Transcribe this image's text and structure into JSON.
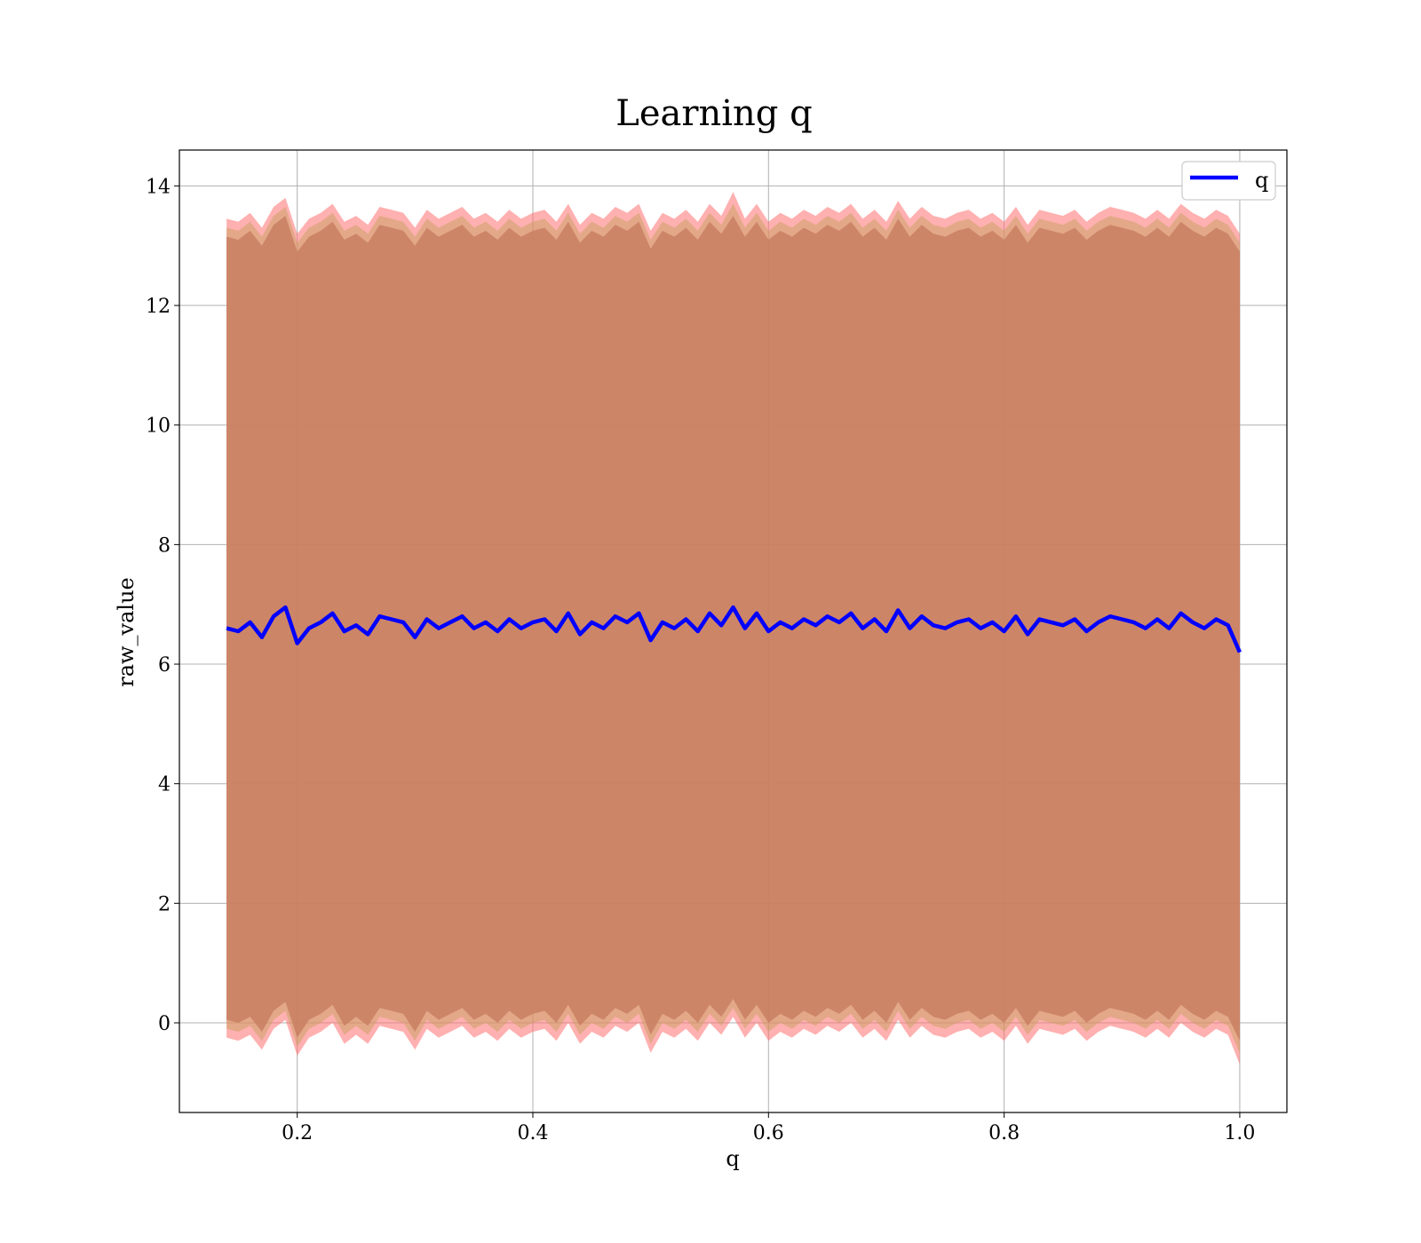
{
  "chart_data": {
    "type": "line",
    "title": "Learning q",
    "xlabel": "q",
    "ylabel": "raw_value",
    "xlim": [
      0.1,
      1.04
    ],
    "ylim": [
      -1.5,
      14.6
    ],
    "x_ticks": [
      0.2,
      0.4,
      0.6,
      0.8,
      1.0
    ],
    "x_tick_labels": [
      "0.2",
      "0.4",
      "0.6",
      "0.8",
      "1.0"
    ],
    "y_ticks": [
      0,
      2,
      4,
      6,
      8,
      10,
      12,
      14
    ],
    "y_tick_labels": [
      "0",
      "2",
      "4",
      "6",
      "8",
      "10",
      "12",
      "14"
    ],
    "grid": true,
    "legend_position": "upper right",
    "series": [
      {
        "name": "q",
        "color": "#0000ff",
        "x": [
          0.14,
          0.15,
          0.16,
          0.17,
          0.18,
          0.19,
          0.2,
          0.21,
          0.22,
          0.23,
          0.24,
          0.25,
          0.26,
          0.27,
          0.28,
          0.29,
          0.3,
          0.31,
          0.32,
          0.33,
          0.34,
          0.35,
          0.36,
          0.37,
          0.38,
          0.39,
          0.4,
          0.41,
          0.42,
          0.43,
          0.44,
          0.45,
          0.46,
          0.47,
          0.48,
          0.49,
          0.5,
          0.51,
          0.52,
          0.53,
          0.54,
          0.55,
          0.56,
          0.57,
          0.58,
          0.59,
          0.6,
          0.61,
          0.62,
          0.63,
          0.64,
          0.65,
          0.66,
          0.67,
          0.68,
          0.69,
          0.7,
          0.71,
          0.72,
          0.73,
          0.74,
          0.75,
          0.76,
          0.77,
          0.78,
          0.79,
          0.8,
          0.81,
          0.82,
          0.83,
          0.84,
          0.85,
          0.86,
          0.87,
          0.88,
          0.89,
          0.9,
          0.91,
          0.92,
          0.93,
          0.94,
          0.95,
          0.96,
          0.97,
          0.98,
          0.99,
          1.0
        ],
        "values": [
          6.6,
          6.55,
          6.7,
          6.45,
          6.8,
          6.95,
          6.35,
          6.6,
          6.7,
          6.85,
          6.55,
          6.65,
          6.5,
          6.8,
          6.75,
          6.7,
          6.45,
          6.75,
          6.6,
          6.7,
          6.8,
          6.6,
          6.7,
          6.55,
          6.75,
          6.6,
          6.7,
          6.75,
          6.55,
          6.85,
          6.5,
          6.7,
          6.6,
          6.8,
          6.7,
          6.85,
          6.4,
          6.7,
          6.6,
          6.75,
          6.55,
          6.85,
          6.65,
          6.95,
          6.6,
          6.85,
          6.55,
          6.7,
          6.6,
          6.75,
          6.65,
          6.8,
          6.7,
          6.85,
          6.6,
          6.75,
          6.55,
          6.9,
          6.6,
          6.8,
          6.65,
          6.6,
          6.7,
          6.75,
          6.6,
          6.7,
          6.55,
          6.8,
          6.5,
          6.75,
          6.7,
          6.65,
          6.75,
          6.55,
          6.7,
          6.8,
          6.75,
          6.7,
          6.6,
          6.75,
          6.6,
          6.85,
          6.7,
          6.6,
          6.75,
          6.65,
          6.2
        ]
      }
    ],
    "bands": [
      {
        "label": "",
        "color": "#8b4a5b",
        "lower": [
          0.05,
          0.0,
          0.1,
          -0.15,
          0.2,
          0.35,
          -0.25,
          0.05,
          0.15,
          0.3,
          -0.05,
          0.1,
          -0.05,
          0.25,
          0.2,
          0.15,
          -0.15,
          0.2,
          0.05,
          0.15,
          0.25,
          0.05,
          0.15,
          0.0,
          0.2,
          0.05,
          0.15,
          0.2,
          0.0,
          0.3,
          -0.05,
          0.15,
          0.05,
          0.25,
          0.15,
          0.3,
          -0.2,
          0.15,
          0.05,
          0.2,
          0.0,
          0.3,
          0.1,
          0.4,
          0.05,
          0.3,
          0.0,
          0.15,
          0.05,
          0.2,
          0.1,
          0.25,
          0.15,
          0.3,
          0.05,
          0.2,
          0.0,
          0.35,
          0.05,
          0.25,
          0.1,
          0.05,
          0.15,
          0.2,
          0.05,
          0.15,
          0.0,
          0.25,
          -0.05,
          0.2,
          0.15,
          0.1,
          0.2,
          0.0,
          0.15,
          0.25,
          0.2,
          0.15,
          0.05,
          0.2,
          0.05,
          0.3,
          0.15,
          0.05,
          0.2,
          0.1,
          -0.3
        ],
        "upper": [
          13.15,
          13.1,
          13.25,
          13.0,
          13.35,
          13.5,
          12.9,
          13.15,
          13.25,
          13.4,
          13.1,
          13.2,
          13.05,
          13.35,
          13.3,
          13.25,
          13.0,
          13.3,
          13.15,
          13.25,
          13.35,
          13.15,
          13.25,
          13.1,
          13.3,
          13.15,
          13.25,
          13.3,
          13.1,
          13.4,
          13.05,
          13.25,
          13.15,
          13.35,
          13.25,
          13.4,
          12.95,
          13.25,
          13.15,
          13.3,
          13.1,
          13.4,
          13.2,
          13.5,
          13.15,
          13.4,
          13.1,
          13.25,
          13.15,
          13.3,
          13.2,
          13.35,
          13.25,
          13.4,
          13.15,
          13.3,
          13.1,
          13.45,
          13.15,
          13.35,
          13.2,
          13.15,
          13.25,
          13.3,
          13.15,
          13.25,
          13.1,
          13.35,
          13.05,
          13.3,
          13.25,
          13.2,
          13.3,
          13.1,
          13.25,
          13.35,
          13.3,
          13.25,
          13.15,
          13.3,
          13.15,
          13.4,
          13.25,
          13.15,
          13.3,
          13.2,
          12.9
        ]
      },
      {
        "label": "",
        "color": "#ff6f6f",
        "lower": [
          -0.25,
          -0.3,
          -0.2,
          -0.45,
          -0.1,
          0.05,
          -0.55,
          -0.25,
          -0.15,
          0.0,
          -0.35,
          -0.2,
          -0.35,
          -0.05,
          -0.1,
          -0.15,
          -0.45,
          -0.1,
          -0.25,
          -0.15,
          -0.05,
          -0.25,
          -0.15,
          -0.3,
          -0.1,
          -0.25,
          -0.15,
          -0.1,
          -0.3,
          0.0,
          -0.35,
          -0.15,
          -0.25,
          -0.05,
          -0.15,
          0.0,
          -0.5,
          -0.15,
          -0.25,
          -0.1,
          -0.3,
          0.0,
          -0.2,
          0.1,
          -0.25,
          0.0,
          -0.3,
          -0.15,
          -0.25,
          -0.1,
          -0.2,
          -0.05,
          -0.15,
          0.0,
          -0.25,
          -0.1,
          -0.3,
          0.05,
          -0.25,
          -0.05,
          -0.2,
          -0.25,
          -0.15,
          -0.1,
          -0.25,
          -0.15,
          -0.3,
          -0.05,
          -0.35,
          -0.1,
          -0.15,
          -0.2,
          -0.1,
          -0.3,
          -0.15,
          -0.05,
          -0.1,
          -0.15,
          -0.25,
          -0.1,
          -0.25,
          0.0,
          -0.15,
          -0.25,
          -0.1,
          -0.2,
          -0.7
        ],
        "upper": [
          13.45,
          13.4,
          13.55,
          13.3,
          13.65,
          13.8,
          13.2,
          13.45,
          13.55,
          13.7,
          13.4,
          13.5,
          13.35,
          13.65,
          13.6,
          13.55,
          13.3,
          13.6,
          13.45,
          13.55,
          13.65,
          13.45,
          13.55,
          13.4,
          13.6,
          13.45,
          13.55,
          13.6,
          13.4,
          13.7,
          13.35,
          13.55,
          13.45,
          13.65,
          13.55,
          13.7,
          13.25,
          13.55,
          13.45,
          13.6,
          13.4,
          13.7,
          13.5,
          13.9,
          13.45,
          13.7,
          13.4,
          13.55,
          13.45,
          13.6,
          13.5,
          13.65,
          13.55,
          13.7,
          13.45,
          13.6,
          13.4,
          13.75,
          13.45,
          13.65,
          13.5,
          13.45,
          13.55,
          13.6,
          13.45,
          13.55,
          13.4,
          13.65,
          13.35,
          13.6,
          13.55,
          13.5,
          13.6,
          13.4,
          13.55,
          13.65,
          13.6,
          13.55,
          13.45,
          13.6,
          13.45,
          13.7,
          13.55,
          13.45,
          13.6,
          13.5,
          13.2
        ]
      },
      {
        "label": "",
        "color": "#c8a060",
        "lower": [
          -0.1,
          -0.15,
          -0.05,
          -0.3,
          0.05,
          0.2,
          -0.4,
          -0.1,
          0.0,
          0.15,
          -0.2,
          -0.05,
          -0.2,
          0.1,
          0.05,
          0.0,
          -0.3,
          0.05,
          -0.1,
          0.0,
          0.1,
          -0.1,
          0.0,
          -0.15,
          0.05,
          -0.1,
          0.0,
          0.05,
          -0.15,
          0.15,
          -0.2,
          0.0,
          -0.1,
          0.1,
          0.0,
          0.15,
          -0.35,
          0.0,
          -0.1,
          0.05,
          -0.15,
          0.15,
          -0.05,
          0.25,
          -0.1,
          0.15,
          -0.15,
          0.0,
          -0.1,
          0.05,
          -0.05,
          0.1,
          0.0,
          0.15,
          -0.1,
          0.05,
          -0.15,
          0.2,
          -0.1,
          0.1,
          -0.05,
          -0.1,
          0.0,
          0.05,
          -0.1,
          0.0,
          -0.15,
          0.1,
          -0.2,
          0.05,
          0.0,
          -0.05,
          0.05,
          -0.15,
          0.0,
          0.1,
          0.05,
          0.0,
          -0.1,
          0.05,
          -0.1,
          0.15,
          0.0,
          -0.1,
          0.05,
          -0.05,
          -0.5
        ],
        "upper": [
          13.3,
          13.25,
          13.4,
          13.15,
          13.5,
          13.65,
          13.05,
          13.3,
          13.4,
          13.55,
          13.25,
          13.35,
          13.2,
          13.5,
          13.45,
          13.4,
          13.15,
          13.45,
          13.3,
          13.4,
          13.5,
          13.3,
          13.4,
          13.25,
          13.45,
          13.3,
          13.4,
          13.45,
          13.25,
          13.55,
          13.2,
          13.4,
          13.3,
          13.5,
          13.4,
          13.55,
          13.1,
          13.4,
          13.3,
          13.45,
          13.25,
          13.55,
          13.35,
          13.7,
          13.3,
          13.55,
          13.25,
          13.4,
          13.3,
          13.45,
          13.35,
          13.5,
          13.4,
          13.55,
          13.3,
          13.45,
          13.25,
          13.6,
          13.3,
          13.5,
          13.35,
          13.3,
          13.4,
          13.45,
          13.3,
          13.4,
          13.25,
          13.5,
          13.2,
          13.45,
          13.4,
          13.35,
          13.45,
          13.25,
          13.4,
          13.5,
          13.45,
          13.4,
          13.3,
          13.45,
          13.3,
          13.55,
          13.4,
          13.3,
          13.45,
          13.35,
          13.05
        ]
      }
    ]
  }
}
